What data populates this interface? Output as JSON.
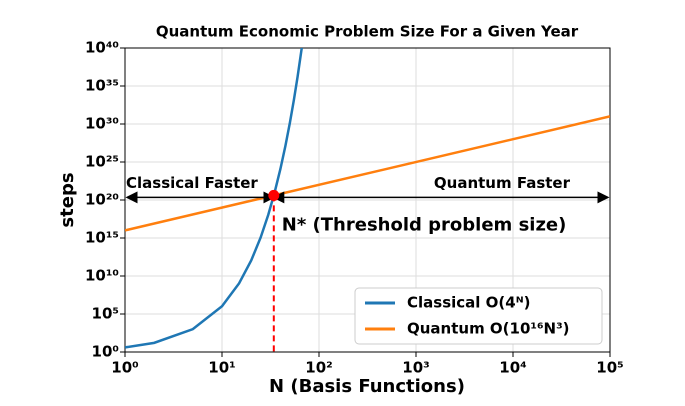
{
  "chart_data": {
    "type": "line",
    "title": "Quantum Economic Problem Size For a Given Year",
    "xlabel": "N (Basis Functions)",
    "ylabel": "steps",
    "xscale": "log",
    "yscale": "log",
    "grid": true,
    "legend": "lower right",
    "xlim": [
      1,
      100000
    ],
    "xticks": [
      {
        "value": 1,
        "label": "10⁰"
      },
      {
        "value": 10,
        "label": "10¹"
      },
      {
        "value": 100,
        "label": "10²"
      },
      {
        "value": 1000,
        "label": "10³"
      },
      {
        "value": 10000,
        "label": "10⁴"
      },
      {
        "value": 100000,
        "label": "10⁵"
      }
    ],
    "ylim": [
      1,
      1e+40
    ],
    "yticks": [
      {
        "value": 1,
        "label": "10⁰"
      },
      {
        "value": 100000.0,
        "label": "10⁵"
      },
      {
        "value": 10000000000.0,
        "label": "10¹⁰"
      },
      {
        "value": 1000000000000000.0,
        "label": "10¹⁵"
      },
      {
        "value": 1e+20,
        "label": "10²⁰"
      },
      {
        "value": 1e+25,
        "label": "10²⁵"
      },
      {
        "value": 1e+30,
        "label": "10³⁰"
      },
      {
        "value": 1e+35,
        "label": "10³⁵"
      },
      {
        "value": 1e+40,
        "label": "10⁴⁰"
      }
    ],
    "series": [
      {
        "name": "Classical O(4ᴺ)",
        "color": "#1f77b4",
        "x": [
          1,
          2,
          5,
          10,
          15,
          20,
          25,
          30,
          35,
          40,
          45,
          50,
          55,
          60,
          66.4
        ],
        "values": [
          4,
          16,
          1024,
          1048576,
          1070000000.0,
          1100000000000.0,
          1130000000000000.0,
          1.15e+18,
          1.18e+21,
          1.21e+24,
          1.24e+27,
          1.27e+30,
          1.3e+33,
          1.33e+36,
          1e+40
        ]
      },
      {
        "name": "Quantum O(10¹⁶N³)",
        "color": "#ff7f0e",
        "x": [
          1,
          100000
        ],
        "values": [
          1e+16,
          1e+31
        ]
      }
    ],
    "threshold": {
      "x": 34.2,
      "y": 4e+20,
      "color": "#ff0000",
      "label": "N* (Threshold problem size)"
    },
    "annotations": [
      "Classical Faster",
      "Quantum Faster"
    ]
  }
}
